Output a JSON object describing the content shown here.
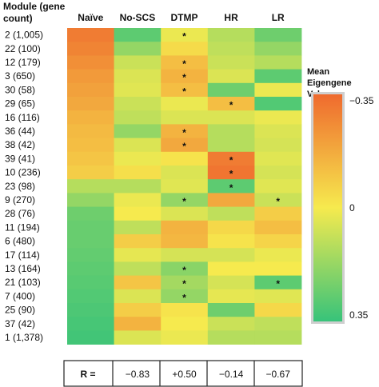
{
  "chart_data": {
    "type": "heatmap",
    "row_axis_title": "Module (gene count)",
    "columns": [
      "Naïve",
      "No-SCS",
      "DTMP",
      "HR",
      "LR"
    ],
    "rows": [
      "2 (1,005)",
      "22 (100)",
      "12 (179)",
      "3 (650)",
      "30 (58)",
      "29 (65)",
      "16 (116)",
      "36 (44)",
      "38 (42)",
      "39 (41)",
      "10 (236)",
      "23 (98)",
      "9 (270)",
      "28 (76)",
      "11 (194)",
      "6 (480)",
      "17 (114)",
      "13 (164)",
      "21 (103)",
      "7 (400)",
      "25 (90)",
      "37 (42)",
      "1 (1,378)"
    ],
    "values": [
      [
        -0.3,
        0.28,
        0.02,
        0.12,
        0.25
      ],
      [
        -0.28,
        0.18,
        -0.04,
        0.1,
        0.18
      ],
      [
        -0.25,
        0.08,
        -0.12,
        0.08,
        0.12
      ],
      [
        -0.22,
        0.05,
        -0.15,
        0.05,
        0.28
      ],
      [
        -0.2,
        0.04,
        -0.12,
        0.25,
        0.02
      ],
      [
        -0.18,
        0.08,
        0.02,
        -0.12,
        0.3
      ],
      [
        -0.15,
        0.1,
        0.05,
        0.05,
        0.02
      ],
      [
        -0.13,
        0.18,
        -0.15,
        0.12,
        0.05
      ],
      [
        -0.12,
        0.05,
        -0.18,
        0.12,
        0.06
      ],
      [
        -0.1,
        0.02,
        -0.02,
        -0.3,
        0.04
      ],
      [
        -0.08,
        -0.03,
        0.05,
        -0.32,
        0.06
      ],
      [
        0.12,
        0.12,
        0.04,
        0.28,
        0.04
      ],
      [
        0.18,
        0.02,
        0.18,
        -0.18,
        0.08
      ],
      [
        0.25,
        0.0,
        0.05,
        0.1,
        -0.08
      ],
      [
        0.26,
        0.1,
        -0.15,
        -0.05,
        -0.12
      ],
      [
        0.26,
        -0.08,
        -0.14,
        -0.02,
        -0.06
      ],
      [
        0.27,
        0.03,
        0.06,
        0.06,
        0.02
      ],
      [
        0.28,
        0.1,
        0.2,
        0.0,
        0.0
      ],
      [
        0.29,
        -0.1,
        0.15,
        0.06,
        0.28
      ],
      [
        0.3,
        0.05,
        0.18,
        0.03,
        0.04
      ],
      [
        0.31,
        -0.08,
        -0.02,
        0.25,
        -0.05
      ],
      [
        0.32,
        -0.15,
        0.0,
        0.08,
        0.1
      ],
      [
        0.33,
        0.05,
        0.02,
        0.12,
        0.12
      ]
    ],
    "significant": [
      [
        0,
        2
      ],
      [
        2,
        2
      ],
      [
        3,
        2
      ],
      [
        4,
        2
      ],
      [
        5,
        3
      ],
      [
        7,
        2
      ],
      [
        8,
        2
      ],
      [
        9,
        3
      ],
      [
        10,
        3
      ],
      [
        11,
        3
      ],
      [
        12,
        2
      ],
      [
        12,
        4
      ],
      [
        17,
        2
      ],
      [
        18,
        2
      ],
      [
        18,
        4
      ],
      [
        19,
        2
      ]
    ],
    "significance_marker": "*",
    "colorbar": {
      "title_lines": [
        "Mean",
        "Eigengene",
        "Values"
      ],
      "min": -0.35,
      "max": 0.35,
      "tick_labels": [
        "−0.35",
        "0",
        "0.35"
      ],
      "tick_values": [
        -0.35,
        0,
        0.35
      ],
      "colors": {
        "low": "#ef6a2e",
        "mid": "#f6ea4e",
        "high": "#37c37a"
      }
    },
    "r_row": {
      "label": "R =",
      "values": [
        "−0.83",
        "+0.50",
        "−0.14",
        "−0.67"
      ]
    }
  }
}
